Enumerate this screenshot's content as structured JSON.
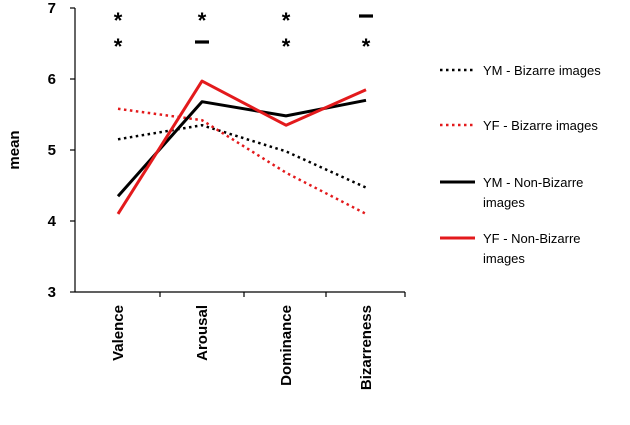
{
  "chart_data": {
    "type": "line",
    "categories": [
      "Valence",
      "Arousal",
      "Dominance",
      "Bizarreness"
    ],
    "ylabel": "mean",
    "xlabel": "",
    "ylim": [
      3,
      7
    ],
    "yticks": [
      "3",
      "4",
      "5",
      "6",
      "7"
    ],
    "grid": false,
    "legend_position": "right",
    "series": [
      {
        "name": "YM - Bizarre images",
        "values": [
          5.15,
          5.35,
          4.98,
          4.47
        ],
        "color": "#000000",
        "style": "dotted"
      },
      {
        "name": "YF - Bizarre images",
        "values": [
          5.58,
          5.42,
          4.68,
          4.1
        ],
        "color": "#e31a1c",
        "style": "dotted"
      },
      {
        "name": "YM - Non-Bizarre images",
        "values": [
          4.35,
          5.68,
          5.48,
          5.7
        ],
        "color": "#000000",
        "style": "solid"
      },
      {
        "name": "YF - Non-Bizarre images",
        "values": [
          4.1,
          5.97,
          5.35,
          5.85
        ],
        "color": "#e31a1c",
        "style": "solid"
      }
    ],
    "annotations": [
      {
        "category": "Valence",
        "top": "*",
        "bottom": "*"
      },
      {
        "category": "Arousal",
        "top": "*",
        "bottom": "–"
      },
      {
        "category": "Dominance",
        "top": "*",
        "bottom": "*"
      },
      {
        "category": "Bizarreness",
        "top": "–",
        "bottom": "*"
      }
    ]
  }
}
